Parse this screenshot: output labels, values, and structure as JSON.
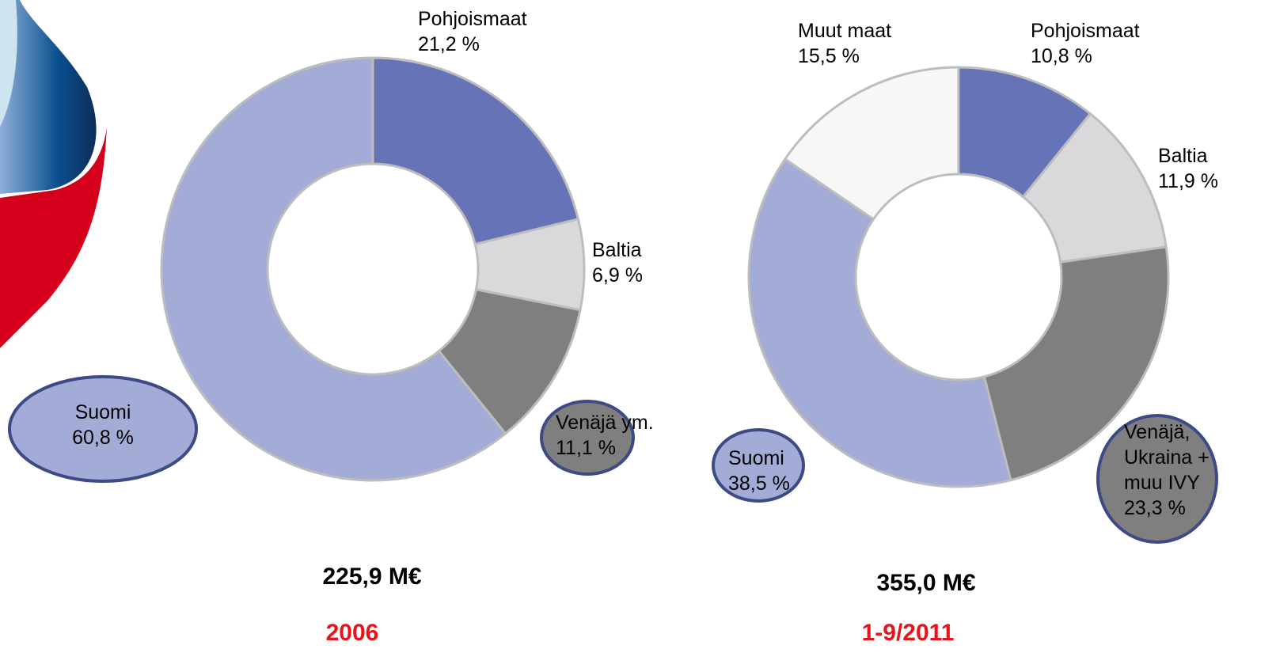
{
  "chart_data": [
    {
      "type": "donut",
      "categories": [
        "Pohjoismaat",
        "Baltia",
        "Venäjä ym.",
        "Suomi"
      ],
      "values": [
        21.2,
        6.9,
        11.1,
        60.8
      ],
      "value_labels": [
        "21,2 %",
        "6,9 %",
        "11,1 %",
        "60,8 %"
      ],
      "colors": [
        "#6674b7",
        "#d9d9db",
        "#7f7f7f",
        "#a3acd6"
      ],
      "total": "225,9 M€",
      "period": "2006"
    },
    {
      "type": "donut",
      "categories": [
        "Pohjoismaat",
        "Baltia",
        "Venäjä, Ukraina + muu IVY",
        "Suomi",
        "Muut maat"
      ],
      "values": [
        10.8,
        11.9,
        23.3,
        38.5,
        15.5
      ],
      "value_labels": [
        "10,8 %",
        "11,9 %",
        "23,3 %",
        "38,5 %",
        "15,5 %"
      ],
      "colors": [
        "#6674b7",
        "#d9d9db",
        "#7f7f7f",
        "#a3acd6",
        "#f7f7f7"
      ],
      "total": "355,0 M€",
      "period": "1-9/2011"
    }
  ]
}
